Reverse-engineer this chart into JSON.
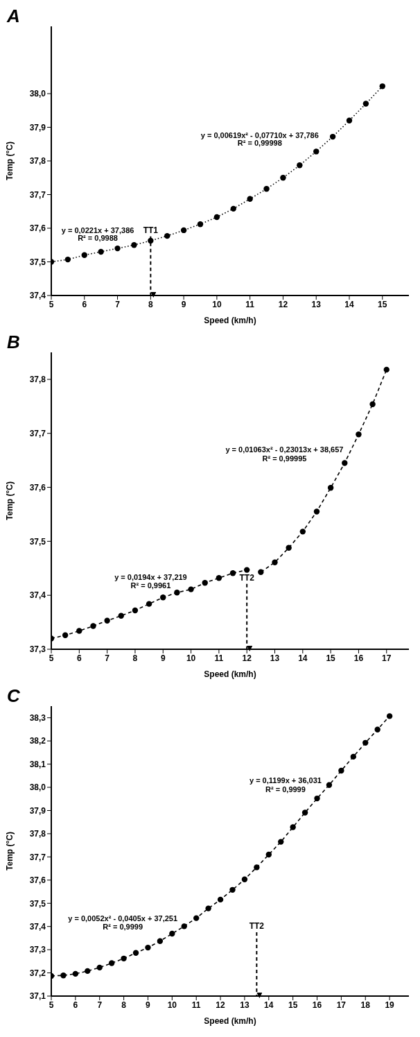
{
  "chart_data": [
    {
      "type": "line",
      "title": "A",
      "xlabel": "Speed (km/h)",
      "ylabel": "Temp (°C)",
      "marker": "circle",
      "line_style": "dotted",
      "xlim": [
        5,
        15.8
      ],
      "xticks": [
        5,
        6,
        7,
        8,
        9,
        10,
        11,
        12,
        13,
        14,
        15
      ],
      "ylim": [
        37.4,
        38.2
      ],
      "yticks": [
        {
          "value": 37.4,
          "label": "37,4"
        },
        {
          "value": 37.5,
          "label": "37,5"
        },
        {
          "value": 37.6,
          "label": "37,6"
        },
        {
          "value": 37.7,
          "label": "37,7"
        },
        {
          "value": 37.8,
          "label": "37,8"
        },
        {
          "value": 37.9,
          "label": "37,9"
        },
        {
          "value": 38.0,
          "label": "38,0"
        }
      ],
      "grid": false,
      "series": [
        {
          "color": "#000000",
          "x": [
            5,
            5.5,
            6,
            6.5,
            7,
            7.5,
            8,
            8.5,
            9,
            9.5,
            10,
            10.5,
            11,
            11.5,
            12,
            12.5,
            13,
            13.5,
            14,
            14.5,
            15
          ],
          "values": [
            37.5,
            37.507,
            37.52,
            37.53,
            37.54,
            37.55,
            37.563,
            37.577,
            37.594,
            37.612,
            37.633,
            37.658,
            37.687,
            37.717,
            37.75,
            37.787,
            37.828,
            37.872,
            37.92,
            37.97,
            38.022
          ]
        }
      ],
      "ref_lines": [
        {
          "axis": "x",
          "value": 8,
          "label": "TT1",
          "line_style": "dashed"
        }
      ],
      "annotations": [
        "y = 0,0221x + 37,386",
        "R² = 0,9988",
        "y = 0,00619x² - 0,07710x + 37,786",
        "R² = 0,99998"
      ]
    },
    {
      "type": "line",
      "title": "B",
      "xlabel": "Speed (km/h)",
      "ylabel": "Temp (°C)",
      "marker": "circle",
      "line_style": "dashed",
      "xlim": [
        5,
        17.8
      ],
      "xticks": [
        5,
        6,
        7,
        8,
        9,
        10,
        11,
        12,
        13,
        14,
        15,
        16,
        17
      ],
      "ylim": [
        37.3,
        37.85
      ],
      "yticks": [
        {
          "value": 37.3,
          "label": "37,3"
        },
        {
          "value": 37.4,
          "label": "37,4"
        },
        {
          "value": 37.5,
          "label": "37,5"
        },
        {
          "value": 37.6,
          "label": "37,6"
        },
        {
          "value": 37.7,
          "label": "37,7"
        },
        {
          "value": 37.8,
          "label": "37,8"
        }
      ],
      "grid": false,
      "series": [
        {
          "color": "#000000",
          "x": [
            5,
            5.5,
            6,
            6.5,
            7,
            7.5,
            8,
            8.5,
            9,
            9.5,
            10,
            10.5,
            11,
            11.5,
            12
          ],
          "values": [
            37.32,
            37.326,
            37.334,
            37.343,
            37.353,
            37.362,
            37.372,
            37.384,
            37.396,
            37.405,
            37.411,
            37.423,
            37.432,
            37.441,
            37.447
          ]
        },
        {
          "color": "#000000",
          "x": [
            12.5,
            13,
            13.5,
            14,
            14.5,
            15,
            15.5,
            16,
            16.5,
            17
          ],
          "values": [
            37.443,
            37.461,
            37.488,
            37.518,
            37.555,
            37.599,
            37.645,
            37.698,
            37.754,
            37.818
          ]
        }
      ],
      "ref_lines": [
        {
          "axis": "x",
          "value": 12,
          "label": "TT2",
          "line_style": "dashed"
        }
      ],
      "annotations": [
        "y = 0,0194x + 37,219",
        "R² = 0,9961",
        "y = 0,01063x² - 0,23013x + 38,657",
        "R² = 0,99995"
      ]
    },
    {
      "type": "line",
      "title": "C",
      "xlabel": "Speed (km/h)",
      "ylabel": "Temp (°C)",
      "marker": "circle",
      "line_style": "dashed",
      "xlim": [
        5,
        19.8
      ],
      "xticks": [
        5,
        6,
        7,
        8,
        9,
        10,
        11,
        12,
        13,
        14,
        15,
        16,
        17,
        18,
        19
      ],
      "ylim": [
        37.1,
        38.35
      ],
      "yticks": [
        {
          "value": 37.1,
          "label": "37,1"
        },
        {
          "value": 37.2,
          "label": "37,2"
        },
        {
          "value": 37.3,
          "label": "37,3"
        },
        {
          "value": 37.4,
          "label": "37,4"
        },
        {
          "value": 37.5,
          "label": "37,5"
        },
        {
          "value": 37.6,
          "label": "37,6"
        },
        {
          "value": 37.7,
          "label": "37,7"
        },
        {
          "value": 37.8,
          "label": "37,8"
        },
        {
          "value": 37.9,
          "label": "37,9"
        },
        {
          "value": 38.0,
          "label": "38,0"
        },
        {
          "value": 38.1,
          "label": "38,1"
        },
        {
          "value": 38.2,
          "label": "38,2"
        },
        {
          "value": 38.3,
          "label": "38,3"
        }
      ],
      "grid": false,
      "series": [
        {
          "color": "#000000",
          "x": [
            5,
            5.5,
            6,
            6.5,
            7,
            7.5,
            8,
            8.5,
            9,
            9.5,
            10,
            10.5,
            11,
            11.5,
            12,
            12.5,
            13,
            13.5,
            14,
            14.5,
            15,
            15.5,
            16,
            16.5,
            17,
            17.5,
            18,
            18.5,
            19
          ],
          "values": [
            37.187,
            37.189,
            37.196,
            37.208,
            37.223,
            37.242,
            37.262,
            37.286,
            37.309,
            37.337,
            37.369,
            37.401,
            37.436,
            37.478,
            37.516,
            37.558,
            37.603,
            37.655,
            37.71,
            37.765,
            37.828,
            37.891,
            37.952,
            38.01,
            38.072,
            38.132,
            38.192,
            38.249,
            38.307
          ]
        }
      ],
      "ref_lines": [
        {
          "axis": "x",
          "value": 13.5,
          "label": "TT2",
          "line_style": "dashed"
        }
      ],
      "annotations": [
        "y = 0,0052x² - 0,0405x + 37,251",
        "R² = 0,9999",
        "y = 0,1199x + 36,031",
        "R² = 0,9999"
      ]
    }
  ]
}
